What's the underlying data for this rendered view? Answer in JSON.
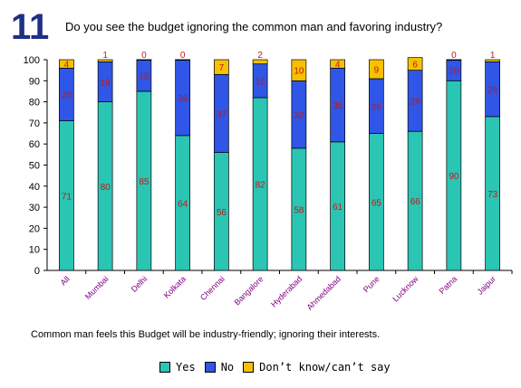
{
  "question_number": "11",
  "question_text": "Do you see the budget ignoring the common man and favoring industry?",
  "caption": "Common man feels this Budget will be industry-friendly; ignoring their interests.",
  "colors": {
    "yes": "#2bc5b4",
    "no": "#2f56e6",
    "dk": "#f7c100",
    "label": "#c01818"
  },
  "chart_data": {
    "type": "bar",
    "stacked": true,
    "ylim": [
      0,
      100
    ],
    "yticks": [
      "0",
      "10",
      "20",
      "30",
      "40",
      "50",
      "60",
      "70",
      "80",
      "90",
      "100"
    ],
    "grid": false,
    "legend_position": "bottom",
    "categories": [
      "All",
      "Mumbai",
      "Delhi",
      "Kolkata",
      "Chennai",
      "Bangalore",
      "Hyderabad",
      "Ahmedabad",
      "Pune",
      "Lucknow",
      "Patna",
      "Jaipur"
    ],
    "series": [
      {
        "name": "Yes",
        "values": [
          71,
          80,
          85,
          64,
          56,
          82,
          58,
          61,
          65,
          66,
          90,
          73
        ]
      },
      {
        "name": "No",
        "values": [
          25,
          19,
          15,
          36,
          37,
          16,
          32,
          35,
          26,
          29,
          10,
          26
        ]
      },
      {
        "name": "Don’t know/can’t say",
        "values": [
          4,
          1,
          0,
          0,
          7,
          2,
          10,
          4,
          9,
          6,
          0,
          1
        ]
      }
    ]
  }
}
